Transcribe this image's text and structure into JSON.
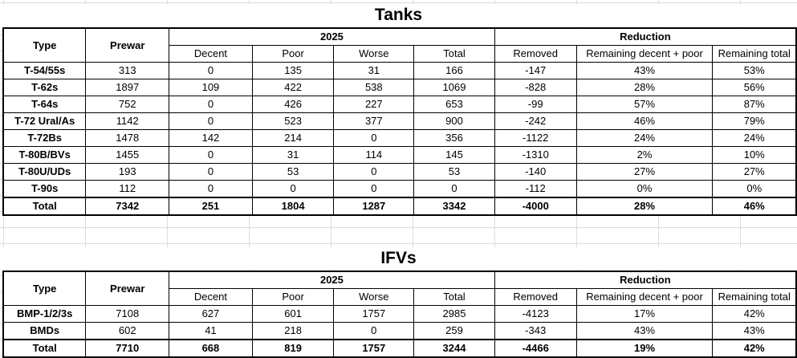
{
  "tanks": {
    "title": "Tanks",
    "headers": {
      "type": "Type",
      "prewar": "Prewar",
      "group_2025": "2025",
      "group_reduction": "Reduction",
      "decent": "Decent",
      "poor": "Poor",
      "worse": "Worse",
      "total": "Total",
      "removed": "Removed",
      "remaining_decent_poor": "Remaining decent + poor",
      "remaining_total": "Remaining total"
    },
    "rows": [
      {
        "type": "T-54/55s",
        "prewar": "313",
        "decent": "0",
        "poor": "135",
        "worse": "31",
        "total": "166",
        "removed": "-147",
        "rem_dp": "43%",
        "rem_total": "53%"
      },
      {
        "type": "T-62s",
        "prewar": "1897",
        "decent": "109",
        "poor": "422",
        "worse": "538",
        "total": "1069",
        "removed": "-828",
        "rem_dp": "28%",
        "rem_total": "56%"
      },
      {
        "type": "T-64s",
        "prewar": "752",
        "decent": "0",
        "poor": "426",
        "worse": "227",
        "total": "653",
        "removed": "-99",
        "rem_dp": "57%",
        "rem_total": "87%"
      },
      {
        "type": "T-72 Ural/As",
        "prewar": "1142",
        "decent": "0",
        "poor": "523",
        "worse": "377",
        "total": "900",
        "removed": "-242",
        "rem_dp": "46%",
        "rem_total": "79%"
      },
      {
        "type": "T-72Bs",
        "prewar": "1478",
        "decent": "142",
        "poor": "214",
        "worse": "0",
        "total": "356",
        "removed": "-1122",
        "rem_dp": "24%",
        "rem_total": "24%"
      },
      {
        "type": "T-80B/BVs",
        "prewar": "1455",
        "decent": "0",
        "poor": "31",
        "worse": "114",
        "total": "145",
        "removed": "-1310",
        "rem_dp": "2%",
        "rem_total": "10%"
      },
      {
        "type": "T-80U/UDs",
        "prewar": "193",
        "decent": "0",
        "poor": "53",
        "worse": "0",
        "total": "53",
        "removed": "-140",
        "rem_dp": "27%",
        "rem_total": "27%"
      },
      {
        "type": "T-90s",
        "prewar": "112",
        "decent": "0",
        "poor": "0",
        "worse": "0",
        "total": "0",
        "removed": "-112",
        "rem_dp": "0%",
        "rem_total": "0%"
      }
    ],
    "total": {
      "type": "Total",
      "prewar": "7342",
      "decent": "251",
      "poor": "1804",
      "worse": "1287",
      "total": "3342",
      "removed": "-4000",
      "rem_dp": "28%",
      "rem_total": "46%"
    }
  },
  "ifvs": {
    "title": "IFVs",
    "headers": {
      "type": "Type",
      "prewar": "Prewar",
      "group_2025": "2025",
      "group_reduction": "Reduction",
      "decent": "Decent",
      "poor": "Poor",
      "worse": "Worse",
      "total": "Total",
      "removed": "Removed",
      "remaining_decent_poor": "Remaining decent + poor",
      "remaining_total": "Remaining total"
    },
    "rows": [
      {
        "type": "BMP-1/2/3s",
        "prewar": "7108",
        "decent": "627",
        "poor": "601",
        "worse": "1757",
        "total": "2985",
        "removed": "-4123",
        "rem_dp": "17%",
        "rem_total": "42%"
      },
      {
        "type": "BMDs",
        "prewar": "602",
        "decent": "41",
        "poor": "218",
        "worse": "0",
        "total": "259",
        "removed": "-343",
        "rem_dp": "43%",
        "rem_total": "43%"
      }
    ],
    "total": {
      "type": "Total",
      "prewar": "7710",
      "decent": "668",
      "poor": "819",
      "worse": "1757",
      "total": "3244",
      "removed": "-4466",
      "rem_dp": "19%",
      "rem_total": "42%"
    }
  }
}
